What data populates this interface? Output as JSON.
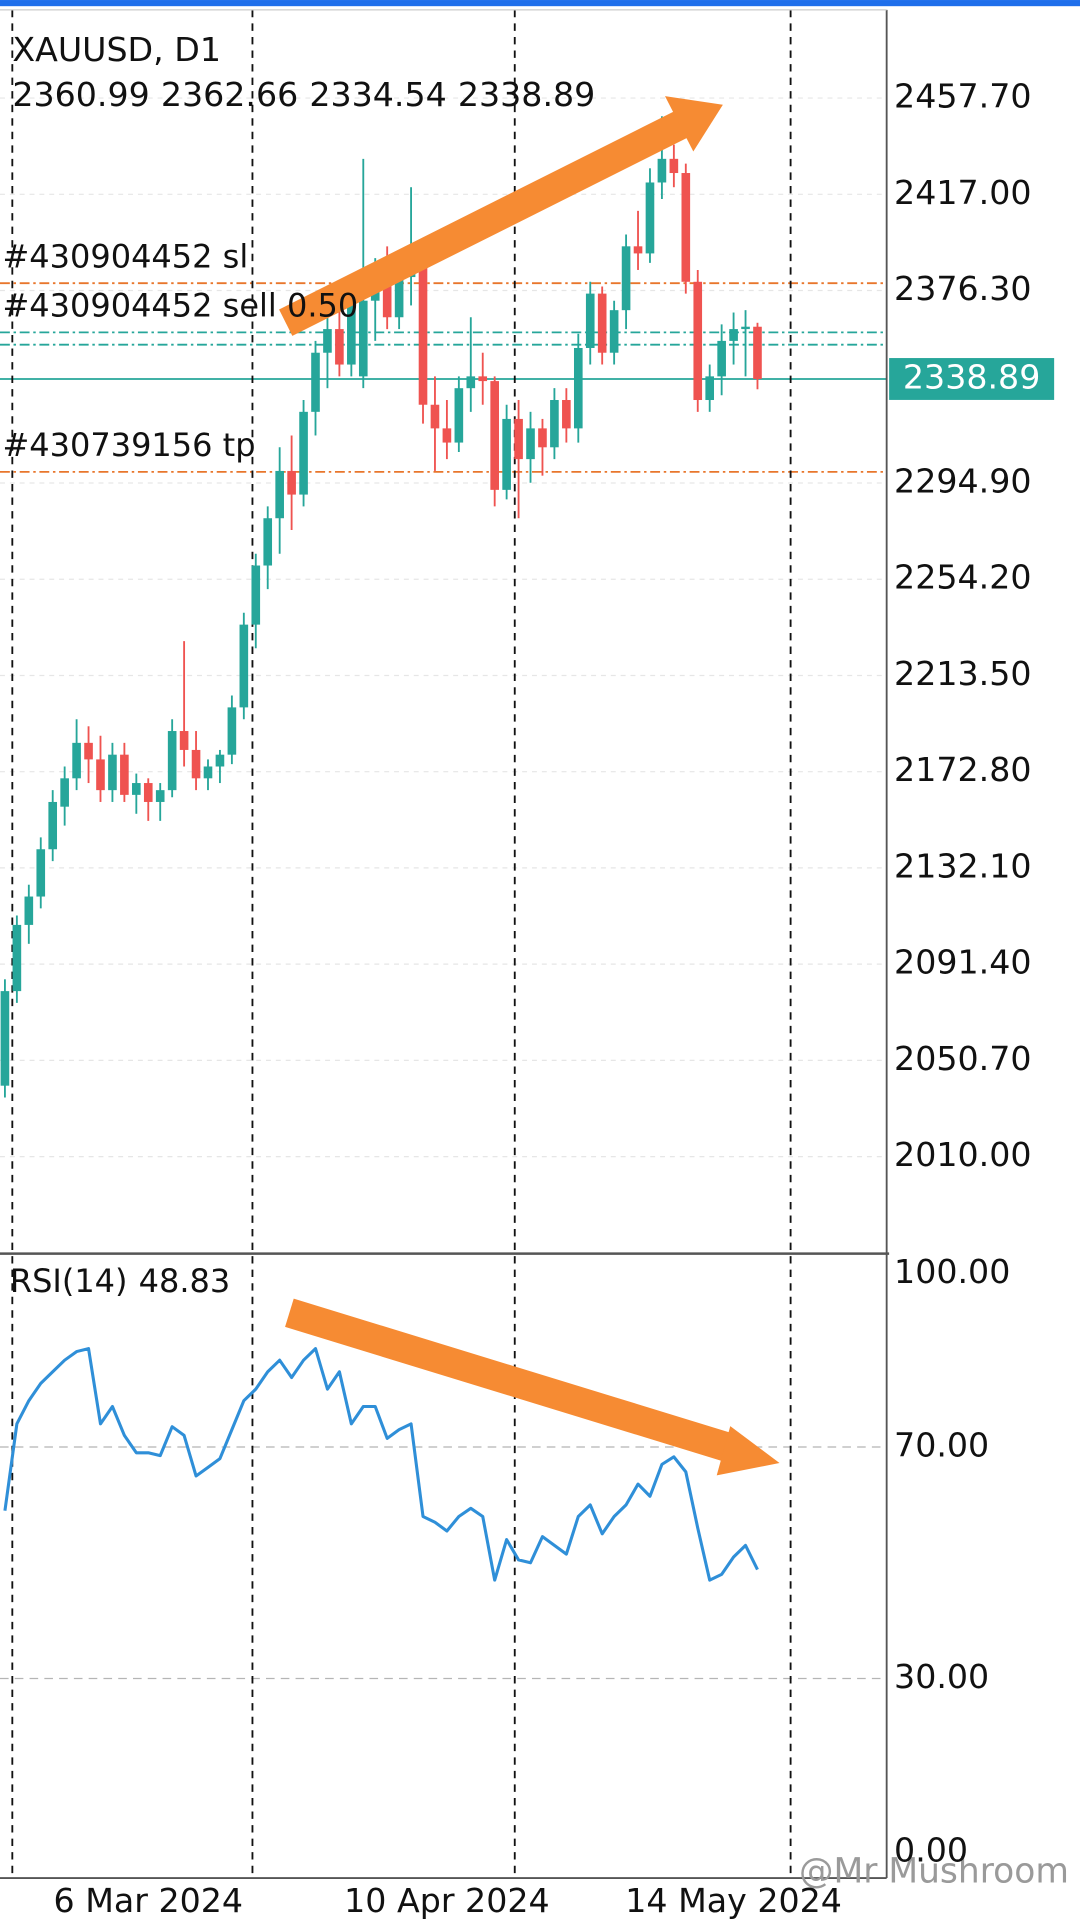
{
  "chart_data": [
    {
      "type": "candlestick",
      "title": "XAUUSD, D1",
      "categories": [
        null,
        null,
        null,
        null,
        null,
        null,
        null,
        null,
        null,
        null,
        null,
        null,
        "6 Mar 2024",
        null,
        null,
        null,
        null,
        null,
        null,
        null,
        null,
        null,
        null,
        null,
        null,
        null,
        null,
        null,
        null,
        null,
        null,
        null,
        null,
        null,
        null,
        null,
        null,
        "10 Apr 2024",
        null,
        null,
        null,
        null,
        null,
        null,
        null,
        null,
        null,
        null,
        null,
        null,
        null,
        null,
        null,
        null,
        null,
        null,
        null,
        null,
        null,
        null,
        null,
        "14 May 2024",
        null,
        null
      ],
      "open": [
        2040,
        2080,
        2108,
        2120,
        2140,
        2158,
        2170,
        2185,
        2178,
        2165,
        2180,
        2163,
        2168,
        2160,
        2165,
        2190,
        2182,
        2170,
        2175,
        2180,
        2200,
        2235,
        2260,
        2280,
        2300,
        2290,
        2325,
        2350,
        2360,
        2345,
        2340,
        2372,
        2385,
        2365,
        2382,
        2390,
        2328,
        2318,
        2312,
        2335,
        2340,
        2338,
        2292,
        2322,
        2305,
        2318,
        2310,
        2330,
        2318,
        2352,
        2375,
        2350,
        2368,
        2395,
        2392,
        2422,
        2432,
        2426,
        2380,
        2330,
        2340,
        2355,
        2360,
        2360.99
      ],
      "high": [
        2085,
        2112,
        2125,
        2145,
        2165,
        2175,
        2195,
        2192,
        2188,
        2185,
        2185,
        2172,
        2170,
        2168,
        2195,
        2228,
        2190,
        2178,
        2182,
        2205,
        2240,
        2265,
        2285,
        2310,
        2315,
        2330,
        2355,
        2370,
        2375,
        2380,
        2432,
        2390,
        2395,
        2385,
        2420,
        2395,
        2340,
        2330,
        2340,
        2365,
        2350,
        2340,
        2328,
        2330,
        2325,
        2322,
        2335,
        2335,
        2358,
        2380,
        2378,
        2372,
        2400,
        2410,
        2428,
        2450,
        2438,
        2430,
        2385,
        2345,
        2362,
        2367,
        2368,
        2362.66
      ],
      "low": [
        2035,
        2075,
        2100,
        2115,
        2135,
        2150,
        2165,
        2168,
        2160,
        2160,
        2160,
        2155,
        2152,
        2152,
        2162,
        2175,
        2165,
        2165,
        2168,
        2176,
        2195,
        2225,
        2250,
        2265,
        2275,
        2285,
        2315,
        2335,
        2340,
        2340,
        2335,
        2355,
        2360,
        2360,
        2370,
        2320,
        2300,
        2305,
        2308,
        2325,
        2328,
        2285,
        2288,
        2280,
        2295,
        2298,
        2305,
        2312,
        2312,
        2345,
        2345,
        2345,
        2360,
        2385,
        2388,
        2415,
        2420,
        2375,
        2325,
        2325,
        2332,
        2345,
        2340,
        2334.54
      ],
      "close": [
        2080,
        2108,
        2120,
        2140,
        2160,
        2170,
        2185,
        2178,
        2165,
        2180,
        2163,
        2168,
        2160,
        2165,
        2190,
        2182,
        2170,
        2175,
        2180,
        2200,
        2235,
        2260,
        2280,
        2300,
        2290,
        2325,
        2350,
        2360,
        2345,
        2370,
        2372,
        2385,
        2365,
        2382,
        2390,
        2328,
        2318,
        2312,
        2335,
        2340,
        2338,
        2292,
        2322,
        2305,
        2318,
        2310,
        2330,
        2318,
        2352,
        2375,
        2350,
        2368,
        2395,
        2392,
        2422,
        2432,
        2426,
        2380,
        2330,
        2340,
        2355,
        2360,
        2361,
        2338.89
      ],
      "up_color": "#26a69a",
      "down_color": "#ef5350",
      "ylim": [
        1970,
        2495
      ],
      "yticks": [
        {
          "value": 2457.7,
          "label": "2457.70"
        },
        {
          "value": 2417,
          "label": "2417.00"
        },
        {
          "value": 2376.3,
          "label": "2376.30"
        },
        {
          "value": 2294.9,
          "label": "2294.90"
        },
        {
          "value": 2254.2,
          "label": "2254.20"
        },
        {
          "value": 2213.5,
          "label": "2213.50"
        },
        {
          "value": 2172.8,
          "label": "2172.80"
        },
        {
          "value": 2132.1,
          "label": "2132.10"
        },
        {
          "value": 2091.4,
          "label": "2091.40"
        },
        {
          "value": 2050.7,
          "label": "2050.70"
        },
        {
          "value": 2010,
          "label": "2010.00"
        }
      ],
      "grid": true,
      "orders": [
        {
          "label": "#430904452 sl",
          "value": 2379.4,
          "color": "#e8762c"
        },
        {
          "label": "#430904452 sell 0.50",
          "value": 2358.6,
          "color": "#26a69a"
        },
        {
          "value": 2353.4,
          "color": "#26a69a"
        },
        {
          "label": "#430739156 tp",
          "value": 2299.6,
          "color": "#e8762c"
        }
      ]
    },
    {
      "type": "line",
      "title": "RSI(14)",
      "color": "#2f8fd8",
      "values": [
        59,
        74,
        78,
        81,
        83,
        85,
        86.5,
        87,
        74,
        77,
        72,
        69,
        69,
        68.5,
        73.5,
        72,
        65,
        66.5,
        68,
        73,
        78,
        80,
        83,
        85,
        82,
        85,
        87,
        80,
        83,
        74,
        77,
        77,
        71.5,
        73,
        74,
        58,
        57,
        55.5,
        58,
        59.4,
        58,
        47,
        54,
        50.5,
        50,
        54.5,
        53,
        51.5,
        58,
        60,
        55,
        58,
        60,
        63.6,
        61.5,
        67,
        68.3,
        65.7,
        56,
        47,
        48,
        51,
        53,
        48.83
      ],
      "ylim": [
        0,
        100
      ],
      "yticks": [
        {
          "value": 100,
          "label": "100.00"
        },
        {
          "value": 70,
          "label": "70.00"
        },
        {
          "value": 30,
          "label": "30.00"
        },
        {
          "value": 0,
          "label": "0.00"
        }
      ],
      "grid": true
    }
  ],
  "watermark": "@Mr Mushroom"
}
